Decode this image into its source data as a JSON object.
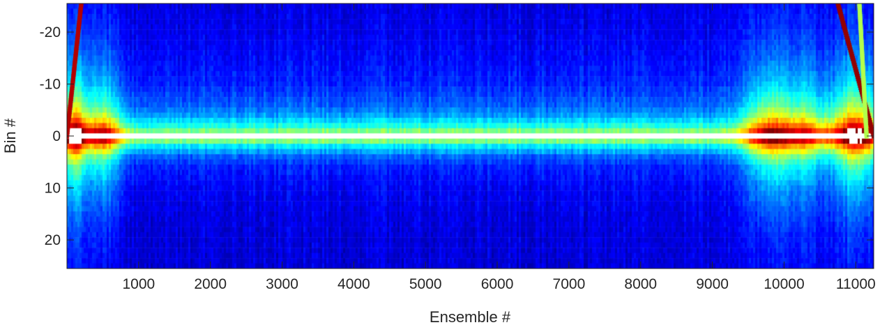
{
  "chart_data": {
    "type": "heatmap",
    "title": "",
    "xlabel": "Ensemble #",
    "ylabel": "Bin #",
    "xlim": [
      0,
      11250
    ],
    "ylim": [
      -25.5,
      25.5
    ],
    "y_reversed": true,
    "colormap": "jet",
    "grid": false,
    "x_ticks": [
      {
        "value": 1000,
        "label": "1000"
      },
      {
        "value": 2000,
        "label": "2000"
      },
      {
        "value": 3000,
        "label": "3000"
      },
      {
        "value": 4000,
        "label": "4000"
      },
      {
        "value": 5000,
        "label": "5000"
      },
      {
        "value": 6000,
        "label": "6000"
      },
      {
        "value": 7000,
        "label": "7000"
      },
      {
        "value": 8000,
        "label": "8000"
      },
      {
        "value": 9000,
        "label": "9000"
      },
      {
        "value": 10000,
        "label": "10000"
      },
      {
        "value": 11000,
        "label": "11000"
      }
    ],
    "y_ticks": [
      {
        "value": -20,
        "label": "-20"
      },
      {
        "value": -10,
        "label": "-10"
      },
      {
        "value": 0,
        "label": "0"
      },
      {
        "value": 10,
        "label": "10"
      },
      {
        "value": 20,
        "label": "20"
      }
    ],
    "bin_profile": [
      {
        "bin": -25,
        "intensity": 0.1
      },
      {
        "bin": -20,
        "intensity": 0.11
      },
      {
        "bin": -15,
        "intensity": 0.13
      },
      {
        "bin": -10,
        "intensity": 0.16
      },
      {
        "bin": -6,
        "intensity": 0.22
      },
      {
        "bin": -4,
        "intensity": 0.28
      },
      {
        "bin": -2,
        "intensity": 0.4
      },
      {
        "bin": -1,
        "intensity": 0.5
      },
      {
        "bin": 0,
        "intensity": 1.0
      },
      {
        "bin": 1,
        "intensity": 0.5
      },
      {
        "bin": 2,
        "intensity": 0.36
      },
      {
        "bin": 4,
        "intensity": 0.22
      },
      {
        "bin": 6,
        "intensity": 0.16
      },
      {
        "bin": 10,
        "intensity": 0.12
      },
      {
        "bin": 15,
        "intensity": 0.1
      },
      {
        "bin": 20,
        "intensity": 0.09
      },
      {
        "bin": 25,
        "intensity": 0.09
      }
    ],
    "bright_regions": [
      {
        "ensemble_center": 100,
        "ensemble_width": 180,
        "peak": 0.85
      },
      {
        "ensemble_center": 500,
        "ensemble_width": 250,
        "peak": 0.6
      },
      {
        "ensemble_center": 9800,
        "ensemble_width": 350,
        "peak": 0.65
      },
      {
        "ensemble_center": 10300,
        "ensemble_width": 300,
        "peak": 0.45
      },
      {
        "ensemble_center": 11000,
        "ensemble_width": 350,
        "peak": 0.8
      }
    ],
    "traces": [
      {
        "points": [
          [
            0,
            0
          ],
          [
            200,
            -25.5
          ]
        ],
        "intensity": 0.95
      },
      {
        "points": [
          [
            10750,
            -25.5
          ],
          [
            11250,
            0
          ]
        ],
        "intensity": 0.98
      },
      {
        "points": [
          [
            11050,
            -25.5
          ],
          [
            11150,
            0
          ]
        ],
        "intensity": 0.55
      }
    ]
  }
}
